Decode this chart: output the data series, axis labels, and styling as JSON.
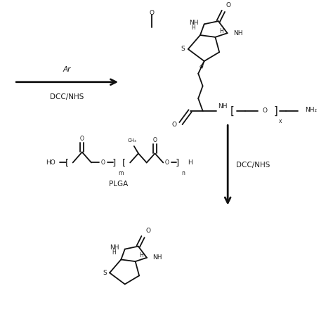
{
  "bg_color": "#ffffff",
  "text_color": "#1a1a1a",
  "arrow_color": "#111111",
  "labels": {
    "ar": "Ar",
    "dcc_nhs": "DCC/NHS",
    "plga": "PLGA",
    "x_sub": "x",
    "m_sub": "m",
    "n_sub": "n",
    "nh2": "NH₂",
    "ho": "HO",
    "o": "O",
    "nh": "NH",
    "h": "H",
    "s": "S"
  },
  "fig_w": 4.74,
  "fig_h": 4.74,
  "dpi": 100,
  "xlim": [
    0,
    10
  ],
  "ylim": [
    0,
    10
  ]
}
